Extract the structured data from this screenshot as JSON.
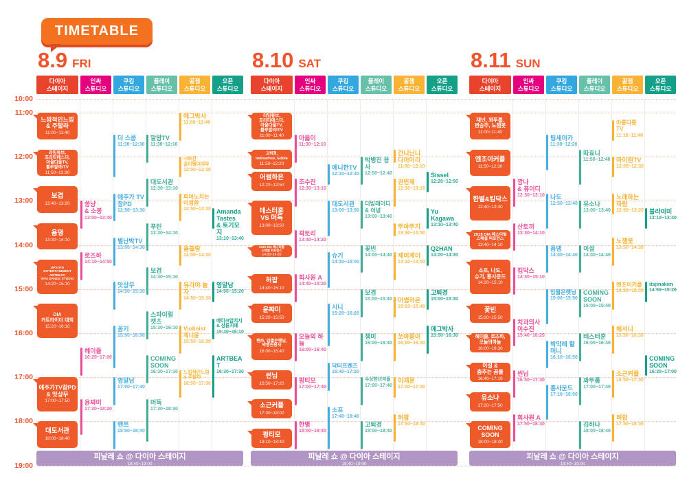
{
  "title": "TIMETABLE",
  "time_labels": [
    "10:00",
    "11:00",
    "12:00",
    "13:00",
    "14:00",
    "15:00",
    "16:00",
    "17:00",
    "18:00",
    "19:00"
  ],
  "colors": {
    "accent": "#F1542C",
    "dia_block": "#EF5A2B",
    "finale": "#B095C5",
    "grid_line": "#F2C3B3",
    "separator": "#F0EAE4"
  },
  "stages": [
    {
      "name": "다이아\n스테이지",
      "color": "#E8432C",
      "item_color": "#EF5A2B"
    },
    {
      "name": "인싸\n스튜디오",
      "color": "#E5017E",
      "item_color": "#EC4D98"
    },
    {
      "name": "쿠킹\n스튜디오",
      "color": "#33A7DF",
      "item_color": "#45AEE0"
    },
    {
      "name": "플레이\n스튜디오",
      "color": "#67C0A8",
      "item_color": "#3FAE99"
    },
    {
      "name": "꿀잼\n스튜디오",
      "color": "#F9B233",
      "item_color": "#F9B233"
    },
    {
      "name": "오픈\n스튜디오",
      "color": "#149F89",
      "item_color": "#149F89"
    }
  ],
  "finale": {
    "title": "피날레 쇼 @ 다이아 스테이지",
    "time": "18:40~19:00"
  },
  "days": [
    {
      "date": "8.9",
      "weekday": "FRI",
      "columns": [
        {
          "events": [
            {
              "title": "느낌적인느낌\n& 주탈라",
              "time": "11:00~11:40"
            },
            {
              "title": "라임튜브,\n프리티에스더,\n아울다울TV,\n룰루랄라ITV",
              "time": "11:50~12:30"
            },
            {
              "title": "보겸",
              "time": "12:40~13:20"
            },
            {
              "title": "욤댕",
              "time": "13:30~14:10"
            },
            {
              "title": "UPVOTE ENTERTAINMENT\nARTBEAT,\nVIVA DANCE STUDIO",
              "time": "14:20~15:10"
            },
            {
              "title": "DIA\n카트라이더 대회",
              "time": "15:20~16:10"
            },
            {
              "title": "애주가TV참PD\n& 맛상무",
              "time": "17:00~17:50"
            },
            {
              "title": "대도서관",
              "time": "18:00~18:40"
            }
          ]
        },
        {
          "events": [
            {
              "title": "쏭냥\n& 소봉",
              "time": "13:00~13:40"
            },
            {
              "title": "로즈하",
              "time": "14:10~14:50"
            },
            {
              "title": "헤이즐",
              "time": "16:20~17:00"
            },
            {
              "title": "윤쨔미",
              "time": "17:30~18:20"
            }
          ]
        },
        {
          "events": [
            {
              "title": "더 스쿱",
              "time": "11:30~12:30"
            },
            {
              "title": "애주가 TV\n참PD",
              "time": "12:50~13:30"
            },
            {
              "title": "별난박TV",
              "time": "13:50~14:30"
            },
            {
              "title": "맛상무",
              "time": "14:50~15:30"
            },
            {
              "title": "꽁키",
              "time": "15:50~16:50"
            },
            {
              "title": "영알남",
              "time": "17:00~17:40"
            },
            {
              "title": "밴쯔",
              "time": "18:00~18:40"
            }
          ]
        },
        {
          "events": [
            {
              "title": "말왕TV",
              "time": "11:30~12:10"
            },
            {
              "title": "대도서관",
              "time": "12:30~13:10"
            },
            {
              "title": "푸린",
              "time": "13:30~14:10"
            },
            {
              "title": "보겸",
              "time": "14:30~15:10"
            },
            {
              "title": "스파이럴 캣츠",
              "time": "15:30~16:10"
            },
            {
              "title": "COMING SOON",
              "time": "16:30~17:10"
            },
            {
              "title": "머독",
              "time": "17:30~18:30"
            }
          ]
        },
        {
          "events": [
            {
              "title": "에그박사",
              "time": "11:00~11:40"
            },
            {
              "title": "시바견\n곰이탱이여우",
              "time": "12:00~12:30"
            },
            {
              "title": "피아노치는\n이정환",
              "time": "12:50~13:30"
            },
            {
              "title": "올블랑",
              "time": "14:00~14:30"
            },
            {
              "title": "유라야 놀자",
              "time": "14:50~15:30"
            },
            {
              "title": "Violinist\n제니윤",
              "time": "15:50~16:30"
            },
            {
              "title": "느낌적인느낌\n& 주탈라",
              "time": "16:50~17:30"
            }
          ]
        },
        {
          "events": [
            {
              "title": "Amanda Tastes\n& 토기모지",
              "time": "13:10~13:40"
            },
            {
              "title": "영알남",
              "time": "14:50~15:20"
            },
            {
              "title": "메이크업치지\n& 상륜지에",
              "time": "15:40~16:10"
            },
            {
              "title": "ARTBEAT",
              "time": "16:30~17:30"
            }
          ]
        }
      ]
    },
    {
      "date": "8.10",
      "weekday": "SAT",
      "columns": [
        {
          "events": [
            {
              "title": "라임튜브,\n프리티에스더,\n아울다울TV,\n룰루랄라ITV",
              "time": "11:00~11:40"
            },
            {
              "title": "고퇴경,\nImlisarhee, Eddie",
              "time": "11:50~12:20"
            },
            {
              "title": "어썸하은",
              "time": "12:20~12:50"
            },
            {
              "title": "테스터훈\nVS 머독",
              "time": "13:00~13:50"
            },
            {
              "title": "2019 DIA 페스티벌\n스페셜 퍼포먼스",
              "time": "14:00~14:20"
            },
            {
              "title": "허팝",
              "time": "14:40~15:10"
            },
            {
              "title": "윤쨔미",
              "time": "15:20~15:50"
            },
            {
              "title": "밴쯔, 입짧은햇님,\n박병진용사",
              "time": "16:00~16:40"
            },
            {
              "title": "썬님",
              "time": "16:50~17:20"
            },
            {
              "title": "소근커플",
              "time": "17:30~18:00"
            },
            {
              "title": "펑티모",
              "time": "18:10~18:40"
            }
          ]
        },
        {
          "events": [
            {
              "title": "아옳이",
              "time": "11:30~12:10"
            },
            {
              "title": "조수잔",
              "time": "12:30~13:10"
            },
            {
              "title": "곽토리",
              "time": "13:40~14:20"
            },
            {
              "title": "회사원 A",
              "time": "14:40~15:20"
            },
            {
              "title": "오늘의 하늘",
              "time": "16:00~16:40"
            },
            {
              "title": "펑티모",
              "time": "17:00~17:40"
            },
            {
              "title": "한별",
              "time": "18:00~18:40"
            }
          ]
        },
        {
          "events": [
            {
              "title": "애니한TV",
              "time": "12:10~12:40"
            },
            {
              "title": "대도서관",
              "time": "13:00~13:50"
            },
            {
              "title": "슈기",
              "time": "14:10~15:00"
            },
            {
              "title": "시니",
              "time": "15:20~16:20"
            },
            {
              "title": "닥터프렌즈",
              "time": "16:40~17:20"
            },
            {
              "title": "소프",
              "time": "17:40~18:40"
            }
          ]
        },
        {
          "events": [
            {
              "title": "박병진 용사",
              "time": "12:00~12:40"
            },
            {
              "title": "더빙레이디\n& 이녕",
              "time": "13:00~13:40"
            },
            {
              "title": "꽃빈",
              "time": "14:00~14:40"
            },
            {
              "title": "보겸",
              "time": "15:00~15:40"
            },
            {
              "title": "잼미",
              "time": "16:00~16:40"
            },
            {
              "title": "수상한녀석들",
              "time": "17:00~17:40"
            },
            {
              "title": "고퇴경",
              "time": "18:00~18:40"
            }
          ]
        },
        {
          "events": [
            {
              "title": "간니닌니\n다이어리",
              "time": "11:50~12:10"
            },
            {
              "title": "권민제",
              "time": "12:30~13:10"
            },
            {
              "title": "뚜아뚜지",
              "time": "13:30~13:50"
            },
            {
              "title": "제이제이",
              "time": "14:10~14:50"
            },
            {
              "title": "어썸하은",
              "time": "15:10~15:40"
            },
            {
              "title": "쏘야쭝아",
              "time": "16:00~16:40"
            },
            {
              "title": "이재윤",
              "time": "17:00~17:30"
            },
            {
              "title": "허팝",
              "time": "17:50~18:30"
            }
          ]
        },
        {
          "events": [
            {
              "title": "Sissel",
              "time": "12:20~12:50"
            },
            {
              "title": "Yu Kagawa",
              "time": "13:10~13:40"
            },
            {
              "title": "Q2HAN",
              "time": "14:00~14:30"
            },
            {
              "title": "고퇴경",
              "time": "15:00~15:30"
            },
            {
              "title": "에그박사",
              "time": "15:50~16:30"
            }
          ]
        }
      ]
    },
    {
      "date": "8.11",
      "weekday": "SUN",
      "columns": [
        {
          "events": [
            {
              "title": "재넌, 꽈뚜룹,\n변승주, 노잼봇",
              "time": "11:00~11:40"
            },
            {
              "title": "엔조이커플",
              "time": "11:50~12:30"
            },
            {
              "title": "한별&킴닥스",
              "time": "12:40~13:30"
            },
            {
              "title": "2019 DIA 페스티벌\n스페셜 퍼포먼스",
              "time": "13:40~14:10"
            },
            {
              "title": "소프, 나도,\n슈기, 홍사운드",
              "time": "14:20~15:10"
            },
            {
              "title": "꽃빈",
              "time": "15:20~15:50"
            },
            {
              "title": "헤이즐, 로즈하,\n오늘의하늘",
              "time": "16:00~16:30"
            },
            {
              "title": "이설 &\n춤추는 곰돌",
              "time": "16:40~17:10"
            },
            {
              "title": "유소나",
              "time": "17:20~17:50"
            },
            {
              "title": "COMING SOON",
              "time": "18:00~18:40"
            }
          ]
        },
        {
          "events": [
            {
              "title": "깡나\n& 퓨어디",
              "time": "12:30~13:10"
            },
            {
              "title": "산토끼",
              "time": "13:30~14:10"
            },
            {
              "title": "킴닥스",
              "time": "14:30~15:10"
            },
            {
              "title": "치과의사\n이수진",
              "time": "15:40~16:20"
            },
            {
              "title": "씬님",
              "time": "16:50~17:30"
            },
            {
              "title": "회사원 A",
              "time": "17:50~18:30"
            }
          ]
        },
        {
          "events": [
            {
              "title": "팀세이카",
              "time": "11:30~12:20"
            },
            {
              "title": "나도",
              "time": "12:50~13:40"
            },
            {
              "title": "욤댕",
              "time": "14:00~14:40"
            },
            {
              "title": "입짧은햇님",
              "time": "15:00~15:50"
            },
            {
              "title": "박막례 할머니",
              "time": "16:10~16:50"
            },
            {
              "title": "홍사운드",
              "time": "17:10~18:00"
            }
          ]
        },
        {
          "events": [
            {
              "title": "따효니",
              "time": "11:50~12:40"
            },
            {
              "title": "유소나",
              "time": "13:00~13:40"
            },
            {
              "title": "이설",
              "time": "14:00~14:40"
            },
            {
              "title": "COMING\nSOON",
              "time": "15:00~15:40"
            },
            {
              "title": "테스터훈",
              "time": "16:00~16:40"
            },
            {
              "title": "꽈뚜룹",
              "time": "17:00~17:40"
            },
            {
              "title": "김하나",
              "time": "18:00~18:40"
            }
          ]
        },
        {
          "events": [
            {
              "title": "아롱다롱TV",
              "time": "11:10~11:40"
            },
            {
              "title": "마이린TV",
              "time": "12:00~12:30"
            },
            {
              "title": "노래하는 하람",
              "time": "12:50~13:20"
            },
            {
              "title": "노잼봇",
              "time": "13:50~14:30"
            },
            {
              "title": "엔조이커플",
              "time": "14:50~15:30"
            },
            {
              "title": "해서니",
              "time": "15:50~16:30"
            },
            {
              "title": "소근커플",
              "time": "16:50~17:30"
            },
            {
              "title": "허팝",
              "time": "17:50~18:30"
            }
          ]
        },
        {
          "events": [
            {
              "title": "블라이미",
              "time": "13:10~13:40"
            },
            {
              "title": "itsjinakim",
              "time": "14:50~15:20"
            },
            {
              "title": "COMING\nSOON",
              "time": "16:30~17:00"
            }
          ]
        }
      ]
    }
  ]
}
